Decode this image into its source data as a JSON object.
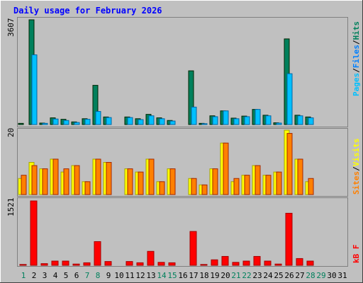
{
  "title": "Daily usage for February 2026",
  "colors": {
    "background": "#c0c0c0",
    "plot_background": "#c0c0c0",
    "hits": "#00805c",
    "files": "#0080ff",
    "pages": "#00c0ff",
    "visits": "#ffff00",
    "sites": "#ff8000",
    "kbytes": "#ff0000",
    "title": "#0000ff",
    "weekend_day": "#00805c",
    "weekday": "#000000"
  },
  "legend": {
    "pages": "Pages",
    "files": "Files",
    "hits": "Hits",
    "sites": "Sites",
    "visits": "Visits",
    "kbytes": "kB F",
    "sep": "/"
  },
  "chart_data": [
    {
      "type": "bar",
      "panel": "top",
      "ylabel_max": "3607",
      "ylim": [
        0,
        3607
      ],
      "categories": [
        "1",
        "2",
        "3",
        "4",
        "5",
        "6",
        "7",
        "8",
        "9",
        "10",
        "11",
        "12",
        "13",
        "14",
        "15",
        "16",
        "17",
        "18",
        "19",
        "20",
        "21",
        "22",
        "23",
        "24",
        "25",
        "26",
        "27",
        "28",
        "29",
        "30",
        "31"
      ],
      "weekend_days": [
        "1",
        "7",
        "8",
        "14",
        "15",
        "21",
        "22",
        "28",
        "29"
      ],
      "series": [
        {
          "name": "Hits",
          "values": [
            40,
            3607,
            50,
            230,
            180,
            90,
            200,
            1350,
            260,
            0,
            260,
            200,
            350,
            230,
            140,
            0,
            1850,
            40,
            300,
            470,
            220,
            290,
            520,
            320,
            60,
            2950,
            320,
            260,
            0,
            0,
            0
          ]
        },
        {
          "name": "Files",
          "values": [
            0,
            0,
            0,
            0,
            0,
            0,
            0,
            0,
            0,
            0,
            0,
            0,
            0,
            0,
            0,
            0,
            0,
            0,
            0,
            0,
            0,
            0,
            0,
            0,
            0,
            0,
            0,
            0,
            0,
            0,
            0
          ]
        },
        {
          "name": "Pages",
          "values": [
            0,
            2400,
            40,
            190,
            140,
            70,
            180,
            450,
            240,
            0,
            240,
            170,
            300,
            200,
            120,
            0,
            600,
            30,
            270,
            470,
            200,
            270,
            520,
            300,
            50,
            1750,
            300,
            230,
            0,
            0,
            0
          ]
        }
      ]
    },
    {
      "type": "bar",
      "panel": "middle",
      "ylabel_max": "20",
      "ylim": [
        0,
        20
      ],
      "categories": [
        "1",
        "2",
        "3",
        "4",
        "5",
        "6",
        "7",
        "8",
        "9",
        "10",
        "11",
        "12",
        "13",
        "14",
        "15",
        "16",
        "17",
        "18",
        "19",
        "20",
        "21",
        "22",
        "23",
        "24",
        "25",
        "26",
        "27",
        "28",
        "29",
        "30",
        "31"
      ],
      "series": [
        {
          "name": "Visits",
          "values": [
            5,
            10,
            8,
            11,
            7,
            9,
            4,
            11,
            10,
            0,
            8,
            7,
            11,
            4,
            8,
            0,
            5,
            3,
            8,
            16,
            4,
            6,
            9,
            6,
            7,
            20,
            11,
            4,
            0,
            0,
            0
          ]
        },
        {
          "name": "Sites",
          "values": [
            6,
            9,
            8,
            11,
            8,
            9,
            4,
            11,
            10,
            0,
            8,
            7,
            11,
            4,
            8,
            0,
            5,
            3,
            8,
            16,
            5,
            6,
            9,
            6,
            7,
            19,
            11,
            5,
            0,
            0,
            0
          ]
        }
      ]
    },
    {
      "type": "bar",
      "panel": "bottom",
      "ylabel_max": "1521",
      "ylim": [
        0,
        1521
      ],
      "categories": [
        "1",
        "2",
        "3",
        "4",
        "5",
        "6",
        "7",
        "8",
        "9",
        "10",
        "11",
        "12",
        "13",
        "14",
        "15",
        "16",
        "17",
        "18",
        "19",
        "20",
        "21",
        "22",
        "23",
        "24",
        "25",
        "26",
        "27",
        "28",
        "29",
        "30",
        "31"
      ],
      "series": [
        {
          "name": "kB F",
          "values": [
            20,
            1521,
            40,
            100,
            100,
            30,
            60,
            560,
            90,
            0,
            90,
            60,
            330,
            70,
            60,
            0,
            800,
            20,
            130,
            210,
            70,
            100,
            210,
            100,
            30,
            1230,
            160,
            100,
            0,
            0,
            0
          ]
        }
      ]
    }
  ]
}
